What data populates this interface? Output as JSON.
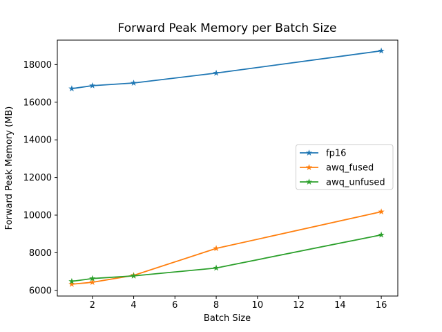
{
  "figure": {
    "background": "#ffffff"
  },
  "chart_data": {
    "type": "line",
    "title": "Forward Peak Memory per Batch Size",
    "xlabel": "Batch Size",
    "ylabel": "Forward Peak Memory (MB)",
    "x": [
      1,
      2,
      4,
      8,
      16
    ],
    "series": [
      {
        "name": "fp16",
        "color": "#1f77b4",
        "marker": "star",
        "values": [
          16720,
          16880,
          17020,
          17550,
          18730
        ]
      },
      {
        "name": "awq_fused",
        "color": "#ff7f0e",
        "marker": "star",
        "values": [
          6330,
          6430,
          6800,
          8230,
          10180
        ]
      },
      {
        "name": "awq_unfused",
        "color": "#2ca02c",
        "marker": "star",
        "values": [
          6480,
          6630,
          6770,
          7190,
          8950
        ]
      }
    ],
    "xticks": [
      2,
      4,
      6,
      8,
      10,
      12,
      14,
      16
    ],
    "yticks": [
      6000,
      8000,
      10000,
      12000,
      14000,
      16000,
      18000
    ],
    "xlim": [
      0.3,
      16.8
    ],
    "ylim": [
      5700,
      19300
    ],
    "grid": false,
    "legend": {
      "position": "center right"
    },
    "axis_color": "#000000",
    "legend_border_color": "#cccccc"
  }
}
